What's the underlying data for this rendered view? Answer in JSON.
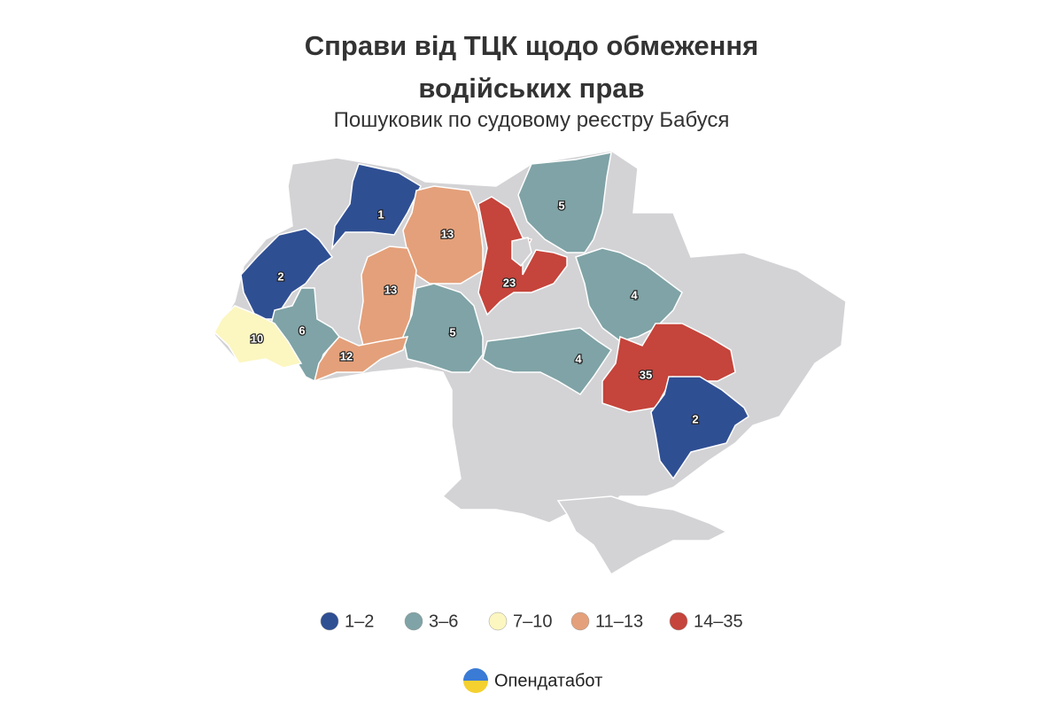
{
  "title": "Справи від ТЦК щодо обмеження водійських прав",
  "subtitle": "Пошуковик по судовому реєстру Бабуся",
  "regions": [
    {
      "value": 1,
      "color": "#2f4f93"
    },
    {
      "value": 13,
      "color": "#e4a07a"
    },
    {
      "value": 5,
      "color": "#7fa3a6"
    },
    {
      "value": 2,
      "color": "#2f4f93"
    },
    {
      "value": 23,
      "color": "#c5443b"
    },
    {
      "value": 13,
      "color": "#e4a07a"
    },
    {
      "value": 4,
      "color": "#7fa3a6"
    },
    {
      "value": 6,
      "color": "#7fa3a6"
    },
    {
      "value": 10,
      "color": "#fcf6c0"
    },
    {
      "value": 5,
      "color": "#7fa3a6"
    },
    {
      "value": 12,
      "color": "#e4a07a"
    },
    {
      "value": 4,
      "color": "#7fa3a6"
    },
    {
      "value": 35,
      "color": "#c5443b"
    },
    {
      "value": 2,
      "color": "#2f4f93"
    }
  ],
  "legend": [
    {
      "label": "1–2",
      "color": "#2f4f93"
    },
    {
      "label": "3–6",
      "color": "#7fa3a6"
    },
    {
      "label": "7–10",
      "color": "#fcf6c0"
    },
    {
      "label": "11–13",
      "color": "#e4a07a"
    },
    {
      "label": "14–35",
      "color": "#c5443b"
    }
  ],
  "brand": "Опендатабот"
}
